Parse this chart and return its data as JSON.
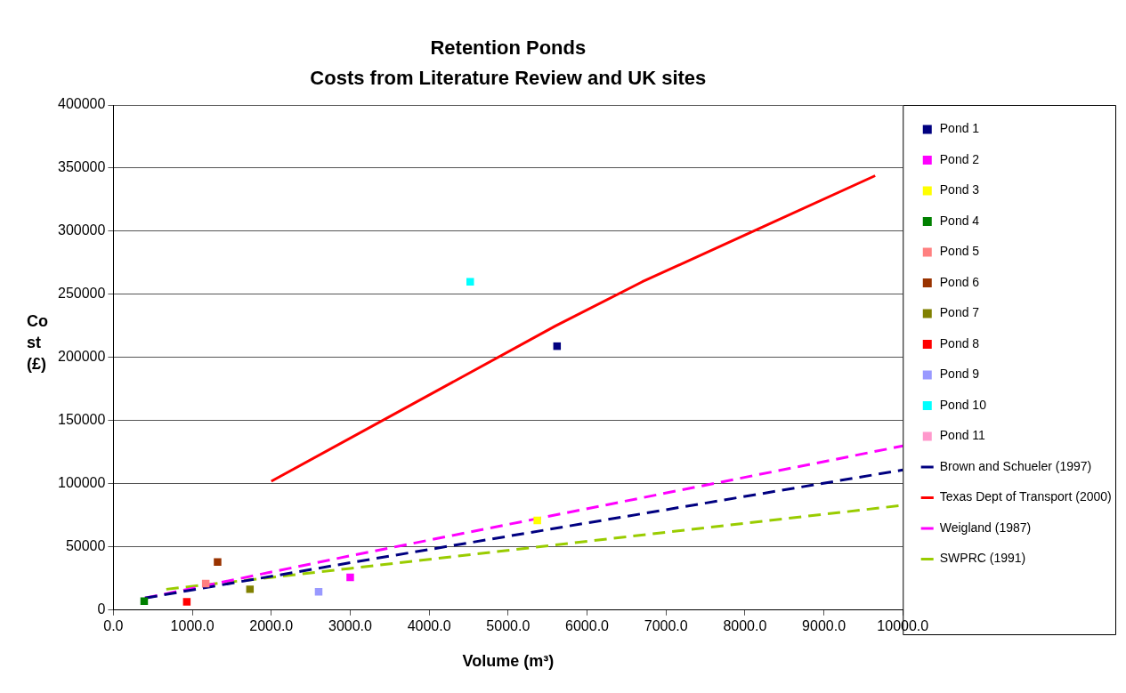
{
  "chart_data": {
    "type": "scatter",
    "title": "Retention Ponds",
    "subtitle": "Costs from Literature Review and UK sites",
    "xlabel": "Volume (m³)",
    "ylabel": "Cost (£)",
    "xlim": [
      0,
      10000
    ],
    "xticks": [
      {
        "value": 0,
        "label": "0.0"
      },
      {
        "value": 1000,
        "label": "1000.0"
      },
      {
        "value": 2000,
        "label": "2000.0"
      },
      {
        "value": 3000,
        "label": "3000.0"
      },
      {
        "value": 4000,
        "label": "4000.0"
      },
      {
        "value": 5000,
        "label": "5000.0"
      },
      {
        "value": 6000,
        "label": "6000.0"
      },
      {
        "value": 7000,
        "label": "7000.0"
      },
      {
        "value": 8000,
        "label": "8000.0"
      },
      {
        "value": 9000,
        "label": "9000.0"
      },
      {
        "value": 10000,
        "label": "10000.0"
      }
    ],
    "ylim": [
      0,
      400000
    ],
    "yticks": [
      0,
      50000,
      100000,
      150000,
      200000,
      250000,
      300000,
      350000,
      400000
    ],
    "grid": "y",
    "legend": "right",
    "marker": "square",
    "series": [
      {
        "name": "Pond 1",
        "color": "#000080",
        "x": [
          5620
        ],
        "values": [
          209000
        ]
      },
      {
        "name": "Pond 2",
        "color": "#ff00ff",
        "x": [
          3000
        ],
        "values": [
          26000
        ]
      },
      {
        "name": "Pond 3",
        "color": "#ffff00",
        "x": [
          5370
        ],
        "values": [
          71000
        ]
      },
      {
        "name": "Pond 4",
        "color": "#008000",
        "x": [
          390
        ],
        "values": [
          7000
        ]
      },
      {
        "name": "Pond 5",
        "color": "#ff8080",
        "x": [
          1170
        ],
        "values": [
          21000
        ]
      },
      {
        "name": "Pond 6",
        "color": "#993300",
        "x": [
          1320
        ],
        "values": [
          38000
        ]
      },
      {
        "name": "Pond 7",
        "color": "#808000",
        "x": [
          1730
        ],
        "values": [
          16500
        ]
      },
      {
        "name": "Pond 8",
        "color": "#ff0000",
        "x": [
          930
        ],
        "values": [
          6500
        ]
      },
      {
        "name": "Pond 9",
        "color": "#9999ff",
        "x": [
          2600
        ],
        "values": [
          14500
        ]
      },
      {
        "name": "Pond 10",
        "color": "#00ffff",
        "x": [
          4520
        ],
        "values": [
          260000
        ]
      },
      {
        "name": "Pond 11",
        "color": "#ff99cc",
        "x": [
          null
        ],
        "values": [
          null
        ]
      },
      {
        "name": "Brown and Schueler (1997)",
        "type": "line",
        "line_style": "dashed",
        "marker": "none",
        "color": "#000080",
        "x": [
          400,
          3000,
          10000
        ],
        "values": [
          9500,
          37500,
          111000
        ]
      },
      {
        "name": "Texas Dept of Transport (2000)",
        "type": "line",
        "line_style": "solid",
        "marker": "none",
        "color": "#ff0000",
        "x": [
          2000,
          5600,
          6700,
          9650
        ],
        "values": [
          102000,
          225000,
          260000,
          344000
        ]
      },
      {
        "name": "Weigland (1987)",
        "type": "line",
        "line_style": "dashed",
        "marker": "none",
        "color": "#ff00ff",
        "x": [
          400,
          3000,
          10000
        ],
        "values": [
          9500,
          43000,
          130000
        ]
      },
      {
        "name": "SWPRC (1991)",
        "type": "line",
        "line_style": "dashed",
        "marker": "none",
        "color": "#99cc00",
        "x": [
          670,
          3000,
          10000
        ],
        "values": [
          16500,
          33000,
          83000
        ]
      }
    ]
  }
}
